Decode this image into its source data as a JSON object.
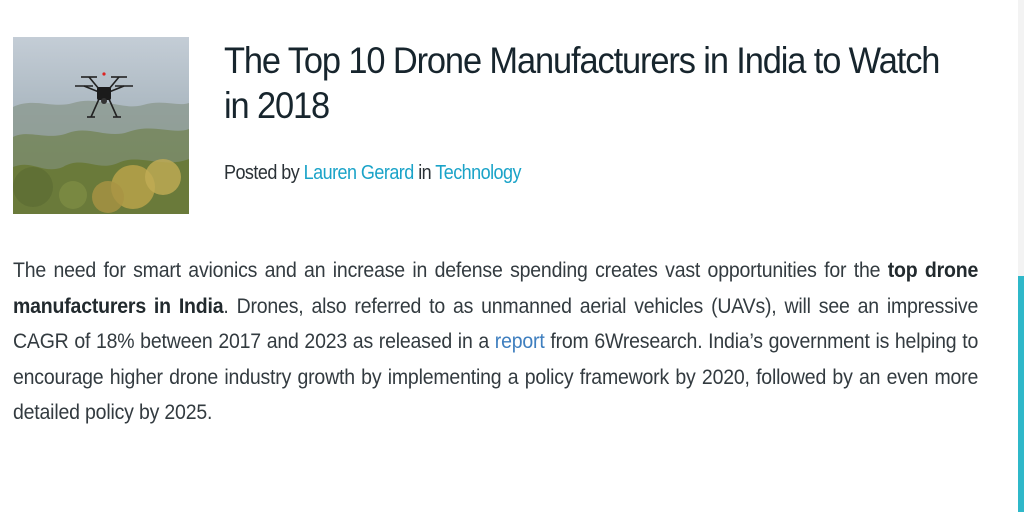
{
  "article": {
    "title": "The Top 10 Drone Manufacturers in India to Watch in 2018",
    "byline": {
      "prefix": "Posted by",
      "author": "Lauren Gerard",
      "middle": "in",
      "category": "Technology"
    },
    "body": {
      "part1": "The need for smart avionics and an increase in defense spending creates vast opportunities for the ",
      "bold": "top drone manufacturers in India",
      "part2": ". Drones, also referred to as unmanned aerial vehicles (UAVs), will see an impressive CAGR of 18% between 2017 and 2023 as released in a ",
      "link": "report",
      "part3": " from 6Wresearch. India’s government is helping to encourage higher drone industry growth by implementing a policy framework by 2020, followed by an even more detailed policy by 2025."
    }
  },
  "colors": {
    "link": "#1aa3c8",
    "scrollbar": "#2fb8c9"
  },
  "icons": {
    "thumbnail": "drone-photo"
  }
}
